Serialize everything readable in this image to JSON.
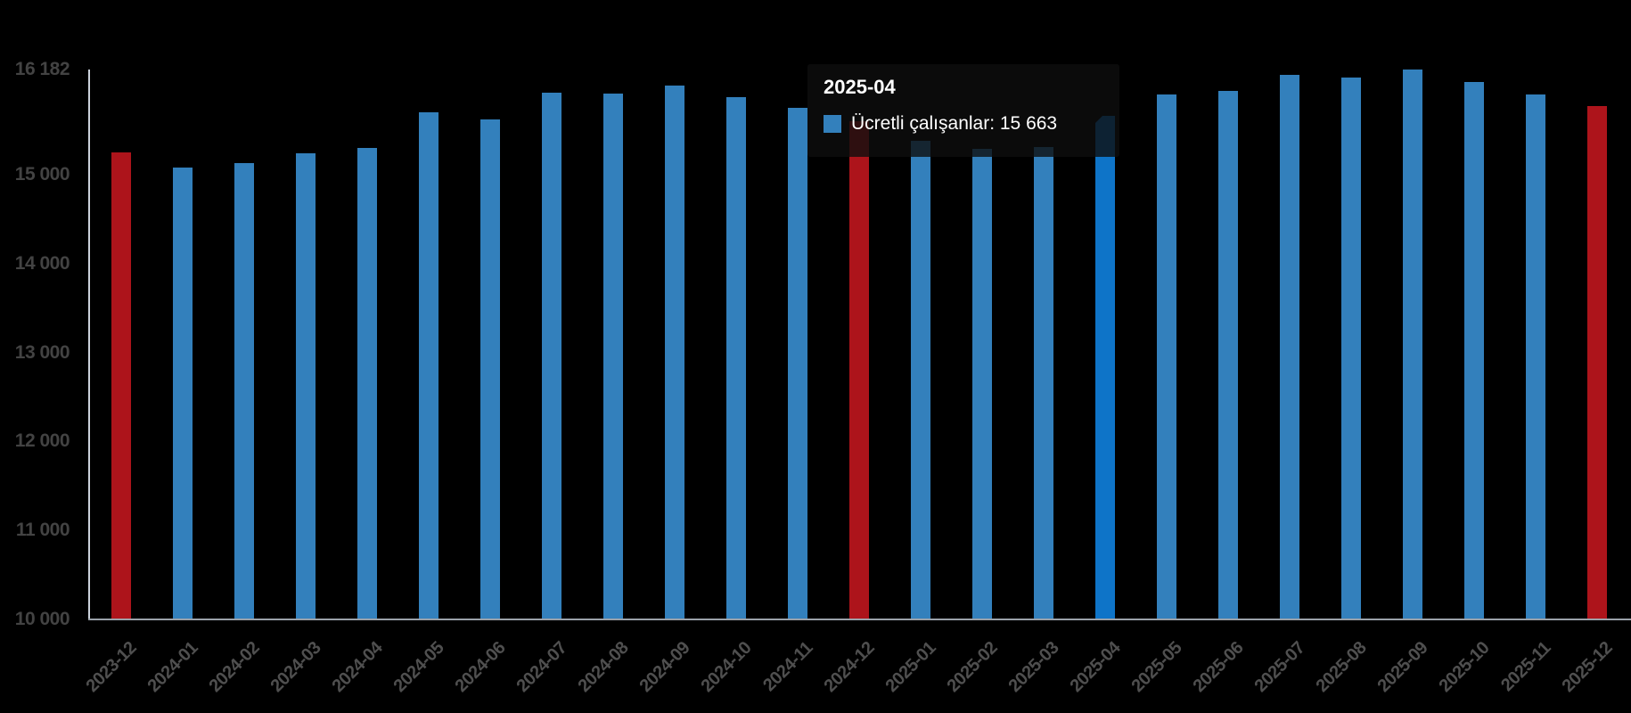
{
  "chart_data": {
    "type": "bar",
    "title": "",
    "xlabel": "",
    "ylabel": "",
    "grid": false,
    "legend": false,
    "categories": [
      "2023-12",
      "2024-01",
      "2024-02",
      "2024-03",
      "2024-04",
      "2024-05",
      "2024-06",
      "2024-07",
      "2024-08",
      "2024-09",
      "2024-10",
      "2024-11",
      "2024-12",
      "2025-01",
      "2025-02",
      "2025-03",
      "2025-04",
      "2025-05",
      "2025-06",
      "2025-07",
      "2025-08",
      "2025-09",
      "2025-10",
      "2025-11",
      "2025-12"
    ],
    "series": [
      {
        "name": "Ücretli çalışanlar",
        "values": [
          15250,
          15080,
          15130,
          15240,
          15300,
          15700,
          15620,
          15920,
          15910,
          16000,
          15870,
          15750,
          15600,
          15380,
          15290,
          15310,
          15663,
          15900,
          15940,
          16120,
          16090,
          16182,
          16040,
          15900,
          15770
        ]
      }
    ],
    "ylim": [
      10000,
      16182
    ],
    "yticks": [
      {
        "value": 16182,
        "label": "16 182"
      },
      {
        "value": 15000,
        "label": "15 000"
      },
      {
        "value": 14000,
        "label": "14 000"
      },
      {
        "value": 13000,
        "label": "13 000"
      },
      {
        "value": 12000,
        "label": "12 000"
      },
      {
        "value": 11000,
        "label": "11 000"
      },
      {
        "value": 10000,
        "label": "10 000"
      }
    ],
    "colors": {
      "bar": "#3380bc",
      "december_bar": "#ad141b",
      "highlight_bar": "#0e74c8",
      "axis_y": "#ccd3dd",
      "axis_x": "#9aa1a9"
    },
    "december_indices": [
      0,
      12,
      24
    ],
    "highlight_index": 16
  },
  "tooltip": {
    "title": "2025-04",
    "text": "Ücretli çalışanlar: 15 663",
    "marker_color": "#3380bc"
  }
}
